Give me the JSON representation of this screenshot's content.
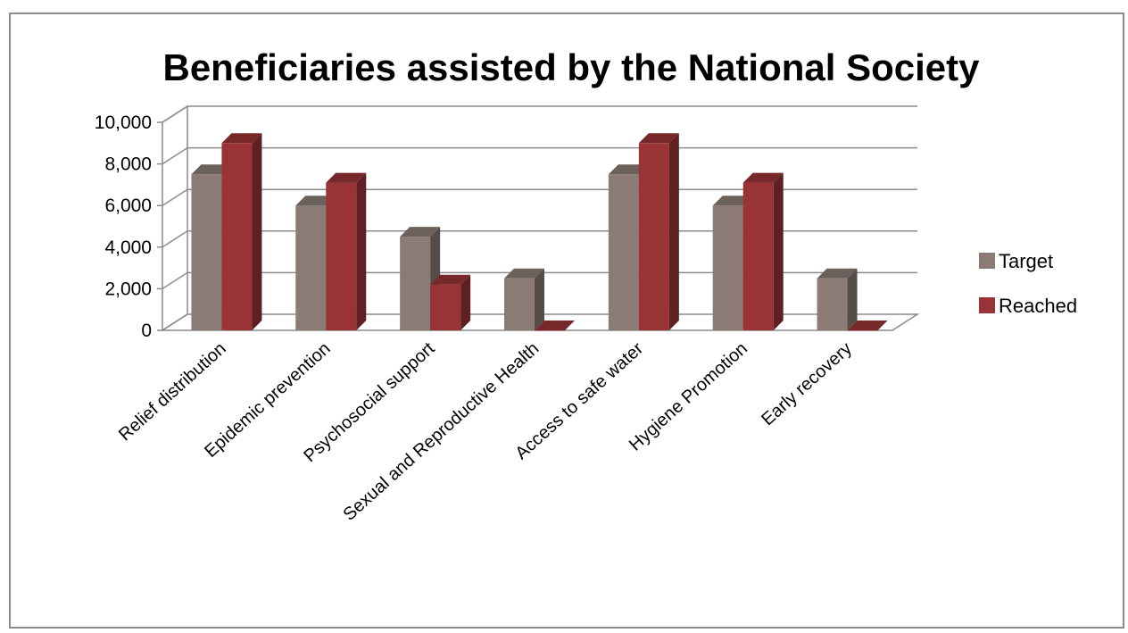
{
  "chart_data": {
    "type": "bar",
    "title": "Beneficiaries assisted by the National Society",
    "categories": [
      "Relief distribution",
      "Epidemic prevention",
      "Psychosocial support",
      "Sexual and Reproductive Health",
      "Access to safe water",
      "Hygiene Promotion",
      "Early recovery"
    ],
    "series": [
      {
        "name": "Target",
        "values": [
          7500,
          6000,
          4500,
          2500,
          7500,
          6000,
          2500
        ]
      },
      {
        "name": "Reached",
        "values": [
          9000,
          7100,
          2200,
          0,
          9000,
          7100,
          0
        ]
      }
    ],
    "ylim": [
      0,
      10000
    ],
    "yticks": [
      "0",
      "2,000",
      "4,000",
      "6,000",
      "8,000",
      "10,000"
    ],
    "grid": true,
    "legend": "right",
    "three_d": true,
    "colors": {
      "Target": "#8b7b74",
      "Reached": "#993336"
    }
  }
}
